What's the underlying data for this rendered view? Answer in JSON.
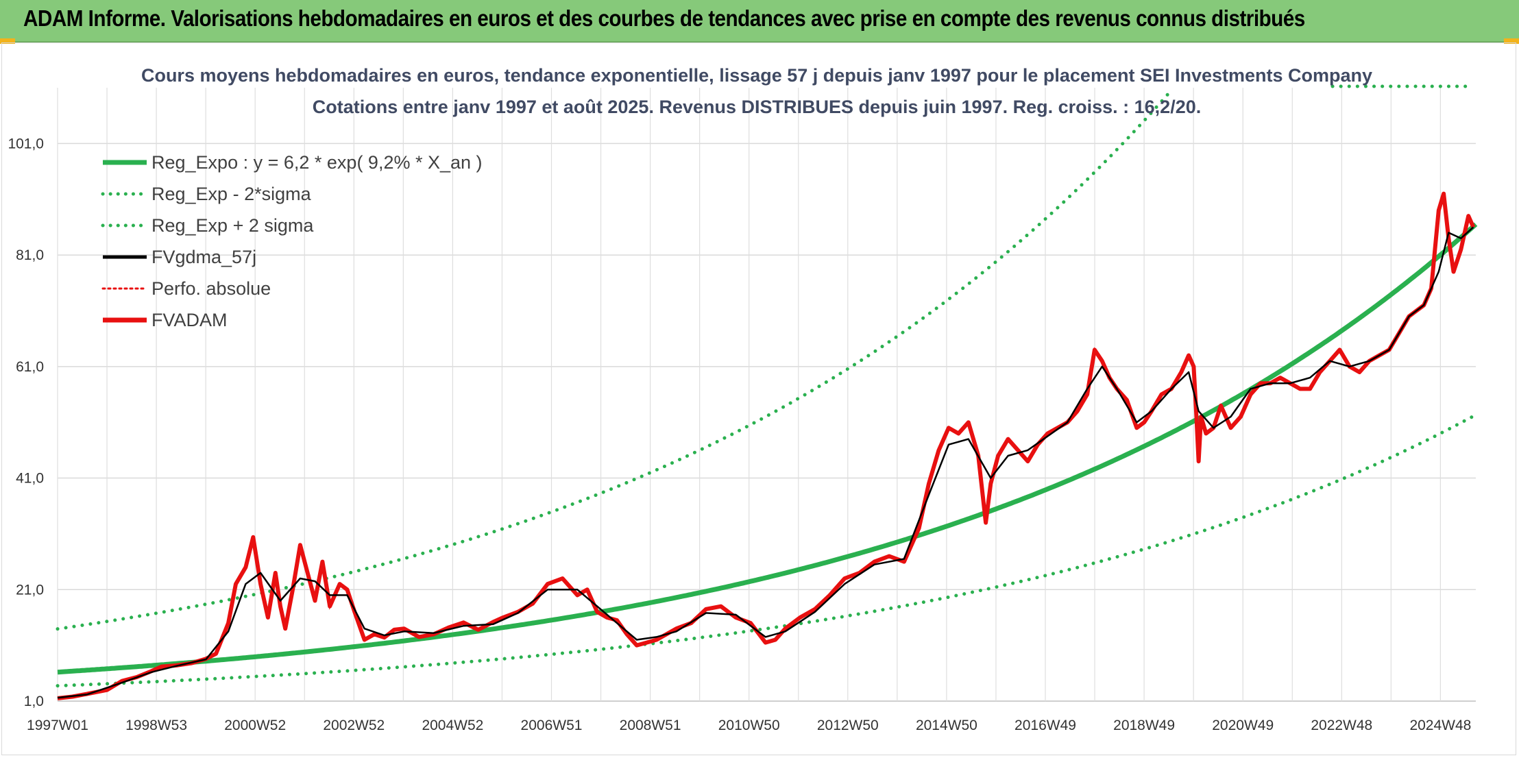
{
  "banner": {
    "title": "ADAM Informe. Valorisations hebdomadaires en euros et des courbes de tendances avec prise en compte des revenus connus distribués"
  },
  "chart_data": {
    "type": "line",
    "title_lines": [
      "Cours moyens hebdomadaires en euros, tendance exponentielle, lissage 57 j depuis janv 1997 pour le placement SEI Investments Company",
      "Cotations entre janv 1997 et août 2025. Revenus DISTRIBUES depuis juin 1997. Reg. croiss. : 16,2/20."
    ],
    "x_tick_labels": [
      "1997W01",
      "1998W53",
      "2000W52",
      "2002W52",
      "2004W52",
      "2006W51",
      "2008W51",
      "2010W50",
      "2012W50",
      "2014W50",
      "2016W49",
      "2018W49",
      "2020W49",
      "2022W48",
      "2024W48"
    ],
    "x_range": [
      1997.0,
      2025.65
    ],
    "y_tick_labels": [
      "1,0",
      "21,0",
      "41,0",
      "61,0",
      "81,0",
      "101,0"
    ],
    "y_ticks": [
      1,
      21,
      41,
      61,
      81,
      101
    ],
    "ylim": [
      1,
      111
    ],
    "grid": true,
    "legend_position": "top-left",
    "legend": [
      {
        "label": "Reg_Expo : y = 6,2 * exp( 9,2% *  X_an )",
        "color": "#2ab04f",
        "style": "solid-thick"
      },
      {
        "label": "Reg_Exp - 2*sigma",
        "color": "#2ab04f",
        "style": "dotted"
      },
      {
        "label": "Reg_Exp + 2 sigma",
        "color": "#2ab04f",
        "style": "dotted"
      },
      {
        "label": "FVgdma_57j",
        "color": "#000000",
        "style": "solid"
      },
      {
        "label": "Perfo. absolue",
        "color": "#e81010",
        "style": "dotted"
      },
      {
        "label": "FVADAM",
        "color": "#e81010",
        "style": "solid-thick"
      }
    ],
    "regression": {
      "a": 6.2,
      "k": 0.092,
      "x0": 1997.0,
      "lower_factor": 0.605,
      "upper_factor": 2.25
    },
    "series_fvadam": {
      "x": [
        1997.0,
        1997.3,
        1997.6,
        1998.0,
        1998.3,
        1998.6,
        1998.9,
        1999.1,
        1999.4,
        1999.7,
        2000.0,
        2000.2,
        2000.45,
        2000.6,
        2000.8,
        2000.95,
        2001.1,
        2001.25,
        2001.4,
        2001.5,
        2001.6,
        2001.75,
        2001.9,
        2002.05,
        2002.2,
        2002.35,
        2002.5,
        2002.7,
        2002.85,
        2003.0,
        2003.2,
        2003.4,
        2003.6,
        2003.8,
        2004.0,
        2004.3,
        2004.6,
        2004.9,
        2005.2,
        2005.5,
        2005.8,
        2006.0,
        2006.3,
        2006.6,
        2006.9,
        2007.2,
        2007.5,
        2007.7,
        2007.9,
        2008.1,
        2008.3,
        2008.5,
        2008.7,
        2008.9,
        2009.1,
        2009.3,
        2009.5,
        2009.8,
        2010.1,
        2010.4,
        2010.7,
        2011.0,
        2011.3,
        2011.5,
        2011.7,
        2012.0,
        2012.3,
        2012.6,
        2012.9,
        2013.2,
        2013.5,
        2013.8,
        2014.1,
        2014.4,
        2014.6,
        2014.8,
        2015.0,
        2015.2,
        2015.4,
        2015.6,
        2015.75,
        2015.85,
        2016.0,
        2016.2,
        2016.4,
        2016.6,
        2016.8,
        2017.0,
        2017.2,
        2017.4,
        2017.6,
        2017.8,
        2017.95,
        2018.1,
        2018.25,
        2018.4,
        2018.6,
        2018.8,
        2018.95,
        2019.1,
        2019.3,
        2019.5,
        2019.7,
        2019.85,
        2019.95,
        2020.0,
        2020.05,
        2020.1,
        2020.2,
        2020.35,
        2020.5,
        2020.7,
        2020.9,
        2021.1,
        2021.3,
        2021.5,
        2021.7,
        2021.9,
        2022.1,
        2022.3,
        2022.5,
        2022.7,
        2022.9,
        2023.1,
        2023.3,
        2023.5,
        2023.7,
        2023.9,
        2024.1,
        2024.3,
        2024.45,
        2024.6,
        2024.75,
        2024.9,
        2025.0,
        2025.1,
        2025.2,
        2025.35,
        2025.5,
        2025.6
      ],
      "y": [
        1.5,
        1.8,
        2.3,
        3.0,
        4.6,
        5.3,
        6.4,
        7.2,
        7.4,
        7.8,
        8.6,
        9.5,
        15.0,
        22.0,
        25.0,
        30.4,
        22.0,
        16.0,
        24.0,
        18.0,
        14.0,
        21.0,
        29.0,
        24.0,
        19.0,
        26.0,
        18.0,
        22.0,
        21.0,
        17.0,
        12.0,
        13.0,
        12.4,
        13.8,
        14.0,
        12.5,
        13.0,
        14.2,
        15.1,
        13.8,
        15.2,
        16.0,
        17.0,
        18.5,
        22.0,
        23.0,
        20.0,
        21.0,
        17.0,
        16.0,
        15.5,
        13.0,
        11.0,
        11.5,
        12.0,
        13.0,
        14.0,
        15.0,
        17.5,
        18.0,
        16.0,
        15.0,
        11.5,
        12.0,
        14.0,
        16.0,
        17.5,
        20.0,
        23.0,
        24.0,
        26.0,
        27.0,
        26.0,
        32.0,
        40.0,
        46.0,
        50.0,
        49.0,
        51.0,
        45.0,
        33.0,
        40.0,
        45.0,
        48.0,
        46.0,
        44.0,
        47.0,
        49.0,
        50.0,
        51.0,
        53.0,
        56.0,
        64.0,
        62.0,
        59.0,
        57.0,
        55.0,
        50.0,
        51.0,
        53.0,
        56.0,
        57.0,
        60.0,
        63.0,
        61.0,
        53.0,
        44.0,
        52.0,
        49.0,
        50.0,
        54.0,
        50.0,
        52.0,
        56.0,
        58.0,
        58.0,
        59.0,
        58.0,
        57.0,
        57.0,
        60.0,
        62.0,
        64.0,
        61.0,
        60.0,
        62.0,
        63.0,
        64.0,
        67.0,
        70.0,
        71.0,
        72.0,
        75.0,
        89.0,
        92.0,
        84.0,
        78.0,
        82.0,
        88.0,
        86.0
      ]
    },
    "series_fvgdma_57j": {
      "x": [
        1997.0,
        1997.6,
        1998.3,
        1998.9,
        1999.4,
        2000.0,
        2000.45,
        2000.8,
        2001.1,
        2001.5,
        2001.9,
        2002.2,
        2002.5,
        2002.85,
        2003.2,
        2003.6,
        2004.0,
        2004.6,
        2005.2,
        2005.8,
        2006.3,
        2006.9,
        2007.5,
        2007.9,
        2008.3,
        2008.7,
        2009.1,
        2009.5,
        2010.1,
        2010.7,
        2011.3,
        2011.7,
        2012.3,
        2012.9,
        2013.5,
        2014.1,
        2014.6,
        2015.0,
        2015.4,
        2015.85,
        2016.2,
        2016.6,
        2017.0,
        2017.4,
        2017.8,
        2018.1,
        2018.4,
        2018.8,
        2019.1,
        2019.5,
        2019.85,
        2020.05,
        2020.35,
        2020.7,
        2021.1,
        2021.5,
        2021.9,
        2022.3,
        2022.7,
        2023.1,
        2023.5,
        2023.9,
        2024.3,
        2024.6,
        2024.9,
        2025.1,
        2025.35,
        2025.6
      ],
      "y": [
        1.6,
        2.2,
        4.3,
        6.2,
        7.3,
        8.5,
        13.5,
        22.0,
        24.0,
        19.0,
        23.0,
        22.5,
        20.0,
        20.0,
        14.0,
        12.8,
        13.5,
        13.2,
        14.5,
        14.8,
        16.8,
        21.0,
        21.0,
        18.0,
        15.0,
        12.0,
        12.5,
        13.5,
        16.8,
        16.5,
        12.5,
        13.5,
        17.0,
        22.0,
        25.5,
        26.5,
        38.0,
        47.0,
        48.0,
        41.0,
        45.0,
        46.0,
        48.5,
        51.0,
        57.0,
        61.0,
        57.0,
        51.0,
        53.0,
        57.0,
        60.0,
        53.0,
        50.0,
        52.0,
        57.0,
        58.0,
        58.0,
        59.0,
        62.0,
        61.0,
        62.0,
        64.0,
        70.0,
        72.0,
        78.0,
        85.0,
        84.0,
        86.0
      ]
    }
  }
}
